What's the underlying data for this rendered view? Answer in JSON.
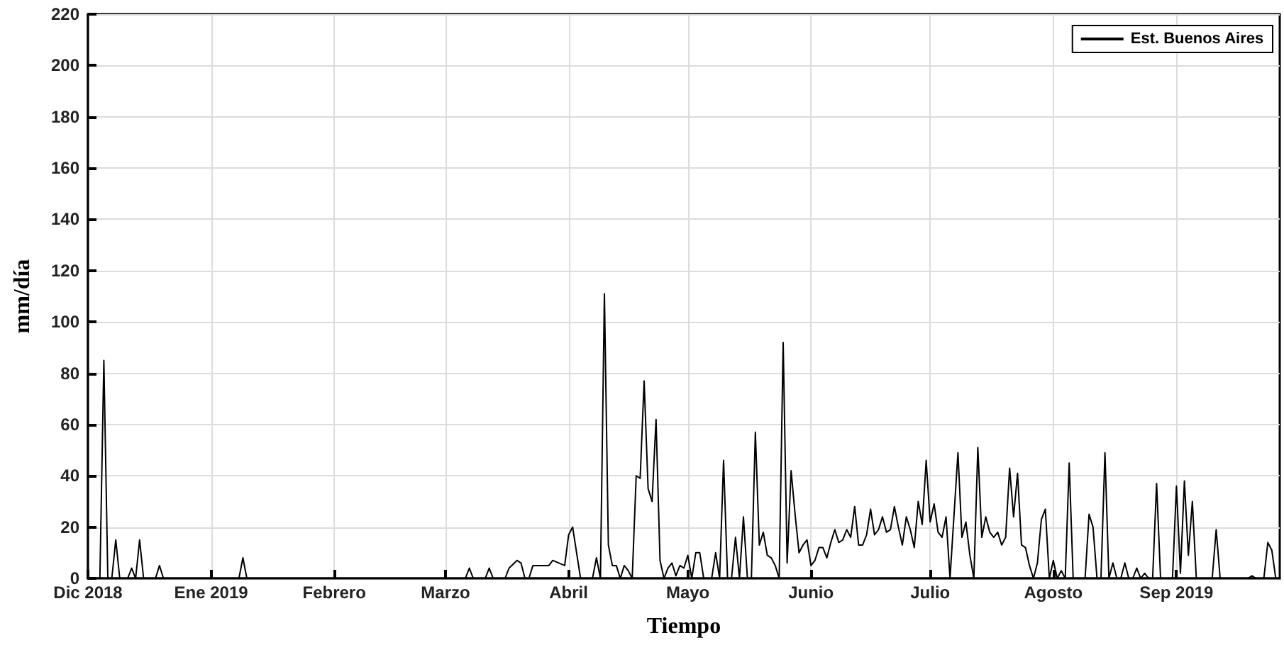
{
  "chart_data": {
    "type": "line",
    "xlabel": "Tiempo",
    "ylabel": "mm/día",
    "xlim": [
      "2018-12-01",
      "2019-09-27"
    ],
    "xticks": [
      {
        "value": "2018-12-01",
        "label": "Dic 2018"
      },
      {
        "value": "2019-01-01",
        "label": "Ene 2019"
      },
      {
        "value": "2019-02-01",
        "label": "Febrero"
      },
      {
        "value": "2019-03-01",
        "label": "Marzo"
      },
      {
        "value": "2019-04-01",
        "label": "Abril"
      },
      {
        "value": "2019-05-01",
        "label": "Mayo"
      },
      {
        "value": "2019-06-01",
        "label": "Junio"
      },
      {
        "value": "2019-07-01",
        "label": "Julio"
      },
      {
        "value": "2019-08-01",
        "label": "Agosto"
      },
      {
        "value": "2019-09-01",
        "label": "Sep 2019"
      }
    ],
    "ylim": [
      0,
      220
    ],
    "yticks": [
      0,
      20,
      40,
      60,
      80,
      100,
      120,
      140,
      160,
      180,
      200,
      220
    ],
    "grid": true,
    "legend": "top right",
    "marker": "none",
    "line_style": "solid",
    "series": [
      {
        "name": "Est. Buenos Aires",
        "color": "#000000",
        "x": [
          "2018-12-01",
          "2018-12-04",
          "2018-12-05",
          "2018-12-06",
          "2018-12-07",
          "2018-12-08",
          "2018-12-09",
          "2018-12-11",
          "2018-12-12",
          "2018-12-13",
          "2018-12-14",
          "2018-12-15",
          "2018-12-18",
          "2018-12-19",
          "2018-12-20",
          "2019-01-08",
          "2019-01-09",
          "2019-01-10",
          "2019-03-06",
          "2019-03-07",
          "2019-03-08",
          "2019-03-11",
          "2019-03-12",
          "2019-03-13",
          "2019-03-16",
          "2019-03-17",
          "2019-03-19",
          "2019-03-20",
          "2019-03-21",
          "2019-03-22",
          "2019-03-23",
          "2019-03-27",
          "2019-03-28",
          "2019-03-31",
          "2019-04-01",
          "2019-04-02",
          "2019-04-04",
          "2019-04-07",
          "2019-04-08",
          "2019-04-09",
          "2019-04-10",
          "2019-04-11",
          "2019-04-12",
          "2019-04-13",
          "2019-04-14",
          "2019-04-15",
          "2019-04-16",
          "2019-04-17",
          "2019-04-18",
          "2019-04-19",
          "2019-04-20",
          "2019-04-21",
          "2019-04-22",
          "2019-04-23",
          "2019-04-24",
          "2019-04-25",
          "2019-04-26",
          "2019-04-27",
          "2019-04-28",
          "2019-04-29",
          "2019-04-30",
          "2019-05-01",
          "2019-05-02",
          "2019-05-03",
          "2019-05-04",
          "2019-05-05",
          "2019-05-07",
          "2019-05-08",
          "2019-05-09",
          "2019-05-10",
          "2019-05-11",
          "2019-05-12",
          "2019-05-13",
          "2019-05-14",
          "2019-05-15",
          "2019-05-16",
          "2019-05-17",
          "2019-05-18",
          "2019-05-19",
          "2019-05-20",
          "2019-05-21",
          "2019-05-22",
          "2019-05-23",
          "2019-05-24",
          "2019-05-25",
          "2019-05-26",
          "2019-05-27",
          "2019-05-28",
          "2019-05-29",
          "2019-05-30",
          "2019-05-31",
          "2019-06-01",
          "2019-06-02",
          "2019-06-03",
          "2019-06-04",
          "2019-06-05",
          "2019-06-06",
          "2019-06-07",
          "2019-06-08",
          "2019-06-09",
          "2019-06-10",
          "2019-06-11",
          "2019-06-12",
          "2019-06-13",
          "2019-06-14",
          "2019-06-15",
          "2019-06-16",
          "2019-06-17",
          "2019-06-18",
          "2019-06-19",
          "2019-06-20",
          "2019-06-21",
          "2019-06-22",
          "2019-06-23",
          "2019-06-24",
          "2019-06-25",
          "2019-06-26",
          "2019-06-27",
          "2019-06-28",
          "2019-06-29",
          "2019-06-30",
          "2019-07-01",
          "2019-07-02",
          "2019-07-03",
          "2019-07-04",
          "2019-07-05",
          "2019-07-06",
          "2019-07-08",
          "2019-07-09",
          "2019-07-10",
          "2019-07-11",
          "2019-07-12",
          "2019-07-13",
          "2019-07-14",
          "2019-07-15",
          "2019-07-16",
          "2019-07-17",
          "2019-07-18",
          "2019-07-19",
          "2019-07-20",
          "2019-07-21",
          "2019-07-22",
          "2019-07-23",
          "2019-07-24",
          "2019-07-25",
          "2019-07-26",
          "2019-07-27",
          "2019-07-28",
          "2019-07-29",
          "2019-07-30",
          "2019-07-31",
          "2019-08-01",
          "2019-08-02",
          "2019-08-03",
          "2019-08-04",
          "2019-08-05",
          "2019-08-06",
          "2019-08-09",
          "2019-08-10",
          "2019-08-11",
          "2019-08-12",
          "2019-08-13",
          "2019-08-14",
          "2019-08-15",
          "2019-08-16",
          "2019-08-17",
          "2019-08-18",
          "2019-08-19",
          "2019-08-20",
          "2019-08-21",
          "2019-08-22",
          "2019-08-23",
          "2019-08-24",
          "2019-08-25",
          "2019-08-26",
          "2019-08-27",
          "2019-08-28",
          "2019-08-31",
          "2019-09-01",
          "2019-09-02",
          "2019-09-03",
          "2019-09-04",
          "2019-09-05",
          "2019-09-06",
          "2019-09-10",
          "2019-09-11",
          "2019-09-12",
          "2019-09-19",
          "2019-09-20",
          "2019-09-21",
          "2019-09-23",
          "2019-09-24",
          "2019-09-25",
          "2019-09-26"
        ],
        "values": [
          0,
          0,
          85,
          0,
          0,
          15,
          0,
          0,
          4,
          0,
          15,
          0,
          0,
          5,
          0,
          0,
          8,
          0,
          0,
          4,
          0,
          0,
          4,
          0,
          0,
          4,
          7,
          6,
          0,
          0,
          5,
          5,
          7,
          5,
          17,
          20,
          0,
          0,
          8,
          0,
          111,
          13,
          5,
          5,
          0,
          5,
          3,
          0,
          40,
          39,
          77,
          35,
          30,
          62,
          7,
          0,
          4,
          6,
          1,
          5,
          4,
          9,
          0,
          10,
          10,
          0,
          0,
          10,
          0,
          46,
          0,
          0,
          16,
          0,
          24,
          0,
          0,
          57,
          13,
          18,
          9,
          8,
          5,
          0,
          92,
          6,
          42,
          25,
          10,
          13,
          15,
          5,
          7,
          12,
          12,
          8,
          14,
          19,
          14,
          15,
          19,
          16,
          28,
          13,
          13,
          17,
          27,
          17,
          19,
          24,
          18,
          19,
          28,
          20,
          13,
          24,
          19,
          12,
          30,
          21,
          46,
          22,
          29,
          18,
          16,
          24,
          0,
          49,
          16,
          22,
          9,
          0,
          51,
          16,
          24,
          18,
          16,
          18,
          13,
          16,
          43,
          24,
          41,
          13,
          12,
          5,
          0,
          6,
          23,
          27,
          0,
          7,
          0,
          3,
          0,
          45,
          0,
          0,
          25,
          20,
          0,
          0,
          49,
          0,
          6,
          0,
          0,
          6,
          0,
          0,
          4,
          0,
          2,
          0,
          0,
          37,
          0,
          0,
          36,
          2,
          38,
          9,
          30,
          0,
          0,
          19,
          0,
          0,
          1,
          0,
          0,
          14,
          11,
          0
        ]
      }
    ]
  }
}
